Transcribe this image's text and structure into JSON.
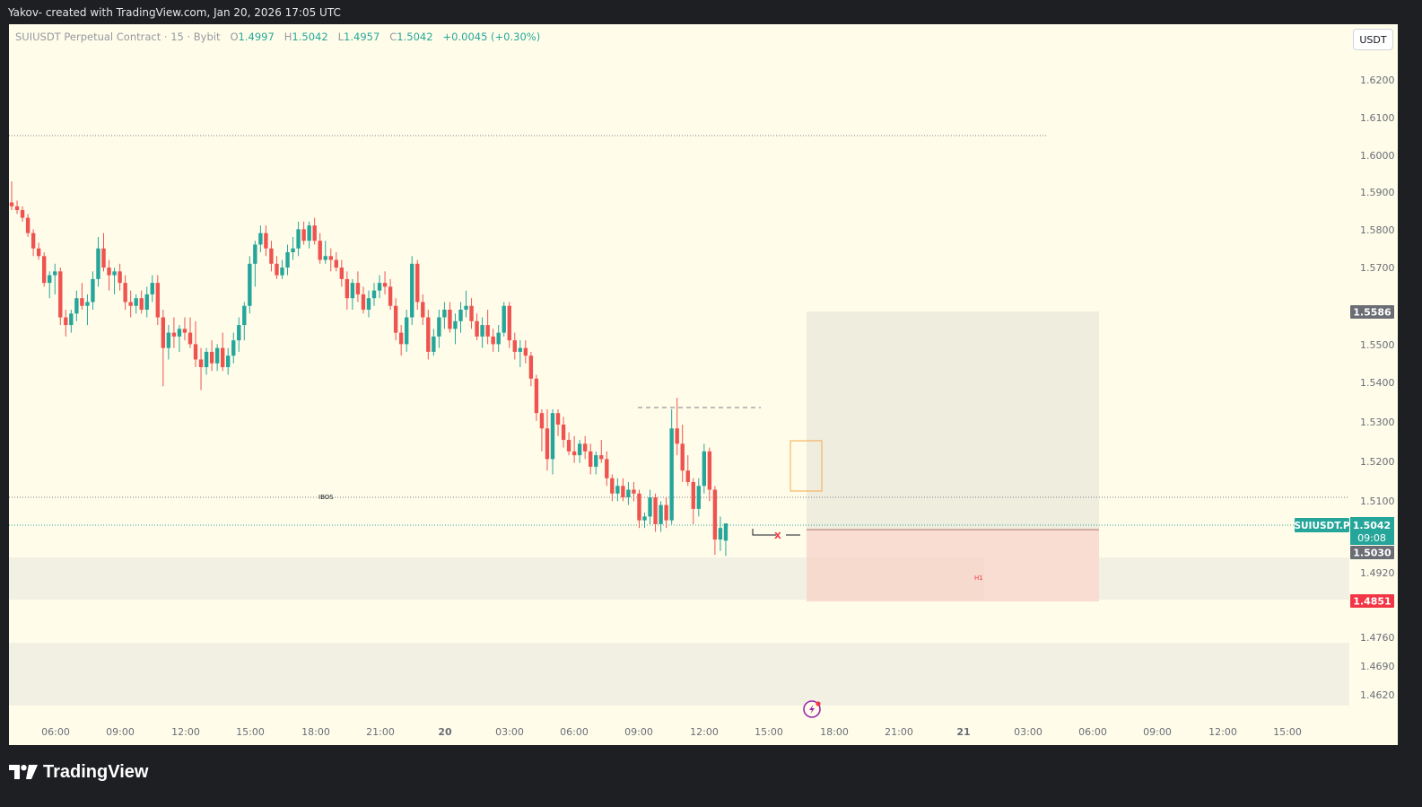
{
  "header": {
    "attribution": "Yakov- created with TradingView.com, Jan 20, 2026 17:05 UTC"
  },
  "legend": {
    "symbol": "SUIUSDT Perpetual Contract · 15 · Bybit",
    "o_label": "O",
    "o_value": "1.4997",
    "h_label": "H",
    "h_value": "1.5042",
    "l_label": "L",
    "l_value": "1.4957",
    "c_label": "C",
    "c_value": "1.5042",
    "change": "+0.0045 (+0.30%)"
  },
  "scale_button": "USDT",
  "brand": "TradingView",
  "colors": {
    "background": "#fffdea",
    "up": "#26a69a",
    "down": "#ef5350",
    "frame": "#1e1f23"
  },
  "chart_data": {
    "type": "candlestick",
    "symbol": "SUIUSDT.P",
    "timeframe": "15",
    "y_ticks": [
      "1.6200",
      "1.6100",
      "1.6000",
      "1.5900",
      "1.5800",
      "1.5700",
      "1.5500",
      "1.5400",
      "1.5300",
      "1.5200",
      "1.5100",
      "1.4920",
      "1.4760",
      "1.4690",
      "1.4620"
    ],
    "y_tick_values": [
      1.62,
      1.61,
      1.6,
      1.59,
      1.58,
      1.57,
      1.55,
      1.54,
      1.53,
      1.52,
      1.51,
      1.492,
      1.476,
      1.469,
      1.462
    ],
    "x_ticks": [
      "06:00",
      "09:00",
      "12:00",
      "15:00",
      "18:00",
      "21:00",
      "20",
      "03:00",
      "06:00",
      "09:00",
      "12:00",
      "15:00",
      "18:00",
      "21:00",
      "21",
      "03:00",
      "06:00",
      "09:00",
      "12:00",
      "15:00"
    ],
    "price_labels": [
      {
        "name": "upper-target",
        "text": "1.5586",
        "value": 1.5586,
        "color": "#6b6d74"
      },
      {
        "name": "symbol",
        "text": "SUIUSDT.P",
        "value": 1.5042,
        "color": "#26a69a"
      },
      {
        "name": "last-price",
        "text": "1.5042",
        "value": 1.5042,
        "color": "#26a69a"
      },
      {
        "name": "countdown",
        "text": "09:08",
        "value": 1.5042,
        "color": "#26a69a"
      },
      {
        "name": "entry",
        "text": "1.5030",
        "value": 1.503,
        "color": "#6b6d74"
      },
      {
        "name": "stop",
        "text": "1.4851",
        "value": 1.4851,
        "color": "#f23645"
      }
    ],
    "annotations": {
      "ibos_label": "IBOS",
      "x_marker": "X",
      "h1_label": "H1",
      "upper_dotted_level": 1.6052,
      "ibos_level": 1.5107,
      "last_price_level": 1.5042,
      "dashed_level": 1.5338,
      "position": {
        "target": 1.5586,
        "entry": 1.503,
        "stop": 1.4851
      }
    },
    "candles": [
      [
        1.588,
        1.5935,
        1.586,
        1.587
      ],
      [
        1.587,
        1.5885,
        1.585,
        1.586
      ],
      [
        1.586,
        1.587,
        1.583,
        1.584
      ],
      [
        1.584,
        1.585,
        1.579,
        1.58
      ],
      [
        1.58,
        1.581,
        1.574,
        1.576
      ],
      [
        1.576,
        1.5775,
        1.573,
        1.574
      ],
      [
        1.574,
        1.575,
        1.566,
        1.567
      ],
      [
        1.567,
        1.57,
        1.563,
        1.569
      ],
      [
        1.569,
        1.572,
        1.564,
        1.57
      ],
      [
        1.57,
        1.571,
        1.556,
        1.558
      ],
      [
        1.558,
        1.56,
        1.553,
        1.556
      ],
      [
        1.556,
        1.56,
        1.554,
        1.559
      ],
      [
        1.559,
        1.565,
        1.557,
        1.563
      ],
      [
        1.563,
        1.567,
        1.56,
        1.561
      ],
      [
        1.561,
        1.564,
        1.556,
        1.562
      ],
      [
        1.562,
        1.57,
        1.56,
        1.568
      ],
      [
        1.568,
        1.579,
        1.566,
        1.576
      ],
      [
        1.576,
        1.58,
        1.57,
        1.571
      ],
      [
        1.571,
        1.573,
        1.565,
        1.569
      ],
      [
        1.569,
        1.571,
        1.564,
        1.57
      ],
      [
        1.57,
        1.572,
        1.565,
        1.567
      ],
      [
        1.567,
        1.569,
        1.56,
        1.562
      ],
      [
        1.562,
        1.565,
        1.558,
        1.561
      ],
      [
        1.561,
        1.564,
        1.559,
        1.563
      ],
      [
        1.563,
        1.565,
        1.559,
        1.56
      ],
      [
        1.56,
        1.566,
        1.558,
        1.564
      ],
      [
        1.564,
        1.569,
        1.562,
        1.567
      ],
      [
        1.567,
        1.569,
        1.556,
        1.558
      ],
      [
        1.558,
        1.56,
        1.54,
        1.55
      ],
      [
        1.55,
        1.556,
        1.547,
        1.554
      ],
      [
        1.554,
        1.558,
        1.55,
        1.553
      ],
      [
        1.553,
        1.556,
        1.549,
        1.555
      ],
      [
        1.555,
        1.558,
        1.552,
        1.554
      ],
      [
        1.554,
        1.558,
        1.55,
        1.551
      ],
      [
        1.551,
        1.557,
        1.545,
        1.547
      ],
      [
        1.547,
        1.55,
        1.539,
        1.545
      ],
      [
        1.545,
        1.55,
        1.543,
        1.549
      ],
      [
        1.549,
        1.552,
        1.544,
        1.546
      ],
      [
        1.546,
        1.551,
        1.544,
        1.55
      ],
      [
        1.55,
        1.554,
        1.544,
        1.545
      ],
      [
        1.545,
        1.55,
        1.543,
        1.548
      ],
      [
        1.548,
        1.554,
        1.546,
        1.552
      ],
      [
        1.552,
        1.558,
        1.549,
        1.556
      ],
      [
        1.556,
        1.562,
        1.552,
        1.561
      ],
      [
        1.561,
        1.574,
        1.559,
        1.572
      ],
      [
        1.572,
        1.578,
        1.566,
        1.577
      ],
      [
        1.577,
        1.582,
        1.575,
        1.58
      ],
      [
        1.58,
        1.582,
        1.574,
        1.576
      ],
      [
        1.576,
        1.578,
        1.57,
        1.572
      ],
      [
        1.572,
        1.574,
        1.568,
        1.569
      ],
      [
        1.569,
        1.573,
        1.568,
        1.571
      ],
      [
        1.571,
        1.577,
        1.569,
        1.575
      ],
      [
        1.575,
        1.579,
        1.573,
        1.576
      ],
      [
        1.576,
        1.583,
        1.574,
        1.581
      ],
      [
        1.581,
        1.583,
        1.577,
        1.578
      ],
      [
        1.578,
        1.583,
        1.576,
        1.582
      ],
      [
        1.582,
        1.584,
        1.577,
        1.578
      ],
      [
        1.578,
        1.58,
        1.572,
        1.573
      ],
      [
        1.573,
        1.578,
        1.572,
        1.574
      ],
      [
        1.574,
        1.576,
        1.57,
        1.573
      ],
      [
        1.573,
        1.575,
        1.57,
        1.571
      ],
      [
        1.571,
        1.573,
        1.566,
        1.568
      ],
      [
        1.568,
        1.57,
        1.56,
        1.563
      ],
      [
        1.563,
        1.568,
        1.56,
        1.567
      ],
      [
        1.567,
        1.57,
        1.562,
        1.564
      ],
      [
        1.564,
        1.566,
        1.559,
        1.56
      ],
      [
        1.56,
        1.565,
        1.558,
        1.563
      ],
      [
        1.563,
        1.567,
        1.561,
        1.565
      ],
      [
        1.565,
        1.569,
        1.563,
        1.567
      ],
      [
        1.567,
        1.57,
        1.564,
        1.566
      ],
      [
        1.566,
        1.568,
        1.56,
        1.561
      ],
      [
        1.561,
        1.563,
        1.552,
        1.554
      ],
      [
        1.554,
        1.556,
        1.548,
        1.551
      ],
      [
        1.551,
        1.56,
        1.549,
        1.558
      ],
      [
        1.558,
        1.574,
        1.556,
        1.572
      ],
      [
        1.572,
        1.573,
        1.56,
        1.562
      ],
      [
        1.562,
        1.564,
        1.556,
        1.558
      ],
      [
        1.558,
        1.56,
        1.547,
        1.549
      ],
      [
        1.549,
        1.555,
        1.548,
        1.553
      ],
      [
        1.553,
        1.56,
        1.55,
        1.558
      ],
      [
        1.558,
        1.562,
        1.555,
        1.56
      ],
      [
        1.56,
        1.562,
        1.554,
        1.555
      ],
      [
        1.555,
        1.559,
        1.551,
        1.557
      ],
      [
        1.557,
        1.562,
        1.554,
        1.56
      ],
      [
        1.56,
        1.565,
        1.558,
        1.561
      ],
      [
        1.561,
        1.563,
        1.555,
        1.557
      ],
      [
        1.557,
        1.559,
        1.552,
        1.553
      ],
      [
        1.553,
        1.558,
        1.55,
        1.556
      ],
      [
        1.556,
        1.56,
        1.551,
        1.553
      ],
      [
        1.553,
        1.555,
        1.549,
        1.551
      ],
      [
        1.551,
        1.556,
        1.549,
        1.554
      ],
      [
        1.554,
        1.562,
        1.553,
        1.561
      ],
      [
        1.561,
        1.562,
        1.55,
        1.552
      ],
      [
        1.552,
        1.554,
        1.547,
        1.549
      ],
      [
        1.549,
        1.552,
        1.545,
        1.55
      ],
      [
        1.55,
        1.552,
        1.546,
        1.548
      ],
      [
        1.548,
        1.549,
        1.54,
        1.542
      ],
      [
        1.542,
        1.543,
        1.531,
        1.533
      ],
      [
        1.533,
        1.534,
        1.523,
        1.529
      ],
      [
        1.529,
        1.534,
        1.518,
        1.521
      ],
      [
        1.521,
        1.534,
        1.517,
        1.533
      ],
      [
        1.533,
        1.534,
        1.527,
        1.53
      ],
      [
        1.53,
        1.532,
        1.524,
        1.526
      ],
      [
        1.526,
        1.528,
        1.522,
        1.523
      ],
      [
        1.523,
        1.527,
        1.52,
        1.522
      ],
      [
        1.522,
        1.526,
        1.52,
        1.525
      ],
      [
        1.525,
        1.527,
        1.521,
        1.523
      ],
      [
        1.523,
        1.525,
        1.517,
        1.519
      ],
      [
        1.519,
        1.523,
        1.517,
        1.522
      ],
      [
        1.522,
        1.526,
        1.52,
        1.521
      ],
      [
        1.521,
        1.523,
        1.514,
        1.516
      ],
      [
        1.516,
        1.517,
        1.51,
        1.512
      ],
      [
        1.512,
        1.516,
        1.51,
        1.514
      ],
      [
        1.514,
        1.516,
        1.51,
        1.511
      ],
      [
        1.511,
        1.515,
        1.509,
        1.513
      ],
      [
        1.513,
        1.515,
        1.51,
        1.512
      ],
      [
        1.512,
        1.513,
        1.503,
        1.505
      ],
      [
        1.505,
        1.507,
        1.503,
        1.506
      ],
      [
        1.506,
        1.513,
        1.504,
        1.511
      ],
      [
        1.511,
        1.512,
        1.502,
        1.504
      ],
      [
        1.504,
        1.51,
        1.502,
        1.509
      ],
      [
        1.509,
        1.511,
        1.503,
        1.505
      ],
      [
        1.505,
        1.534,
        1.504,
        1.529
      ],
      [
        1.529,
        1.537,
        1.522,
        1.525
      ],
      [
        1.525,
        1.53,
        1.515,
        1.518
      ],
      [
        1.518,
        1.522,
        1.514,
        1.515
      ],
      [
        1.515,
        1.516,
        1.504,
        1.508
      ],
      [
        1.508,
        1.516,
        1.506,
        1.514
      ],
      [
        1.514,
        1.525,
        1.512,
        1.523
      ],
      [
        1.523,
        1.524,
        1.51,
        1.513
      ],
      [
        1.513,
        1.514,
        1.496,
        1.5
      ],
      [
        1.5,
        1.506,
        1.497,
        1.503
      ],
      [
        1.4997,
        1.5042,
        1.4957,
        1.5042
      ]
    ]
  }
}
